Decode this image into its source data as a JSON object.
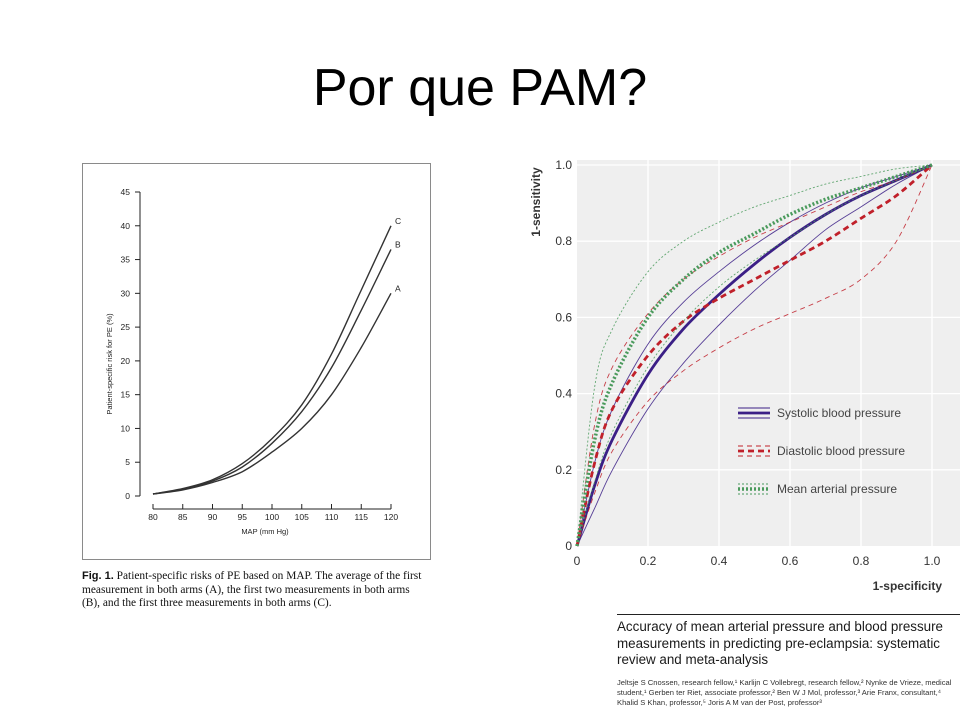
{
  "slide": {
    "title": "Por que PAM?"
  },
  "chart_data": [
    {
      "type": "line",
      "title": "",
      "xlabel": "MAP (mm Hg)",
      "ylabel": "Patient-specific risk for PE (%)",
      "xlim": [
        80,
        120
      ],
      "ylim": [
        0,
        45
      ],
      "xticks": [
        80,
        85,
        90,
        95,
        100,
        105,
        110,
        115,
        120
      ],
      "yticks": [
        0,
        5,
        10,
        15,
        20,
        25,
        30,
        35,
        40,
        45
      ],
      "grid": false,
      "x": [
        80,
        85,
        90,
        95,
        100,
        105,
        110,
        115,
        120
      ],
      "series": [
        {
          "name": "A",
          "values": [
            0.3,
            0.9,
            2.0,
            3.6,
            6.5,
            10.0,
            15.0,
            22.0,
            30.0
          ]
        },
        {
          "name": "B",
          "values": [
            0.3,
            1.0,
            2.2,
            4.3,
            7.8,
            12.5,
            19.0,
            27.5,
            36.5
          ]
        },
        {
          "name": "C",
          "values": [
            0.3,
            1.1,
            2.4,
            4.8,
            8.5,
            13.5,
            21.0,
            30.5,
            40.0
          ]
        }
      ],
      "caption": {
        "label": "Fig. 1.",
        "text": "Patient-specific risks of PE based on MAP. The average of the first measurement in both arms (A), the first two measurements in both arms (B), and the first three measurements in both arms (C)."
      }
    },
    {
      "type": "line",
      "title": "",
      "xlabel": "1-specificity",
      "ylabel": "1-sensitivity",
      "xlim": [
        0,
        1
      ],
      "ylim": [
        0,
        1
      ],
      "xticks": [
        "0",
        "0.2",
        "0.4",
        "0.6",
        "0.8",
        "1.0"
      ],
      "yticks": [
        "0",
        "0.2",
        "0.4",
        "0.6",
        "0.8",
        "1.0"
      ],
      "grid": true,
      "legend_position": "bottom-right",
      "x": [
        0,
        0.05,
        0.1,
        0.2,
        0.3,
        0.4,
        0.5,
        0.6,
        0.7,
        0.8,
        0.9,
        1.0
      ],
      "series": [
        {
          "name": "Systolic blood pressure",
          "style": "solid",
          "color": "#3b1f86",
          "values": [
            0,
            0.16,
            0.28,
            0.45,
            0.57,
            0.66,
            0.74,
            0.81,
            0.87,
            0.92,
            0.96,
            1.0
          ],
          "ci_upper": [
            0,
            0.22,
            0.36,
            0.53,
            0.64,
            0.72,
            0.79,
            0.85,
            0.9,
            0.94,
            0.97,
            1.0
          ],
          "ci_lower": [
            0,
            0.1,
            0.2,
            0.36,
            0.48,
            0.58,
            0.67,
            0.75,
            0.83,
            0.89,
            0.95,
            1.0
          ]
        },
        {
          "name": "Diastolic blood pressure",
          "style": "dashed",
          "color": "#c0202a",
          "values": [
            0,
            0.22,
            0.36,
            0.5,
            0.59,
            0.65,
            0.7,
            0.75,
            0.8,
            0.86,
            0.92,
            1.0
          ],
          "ci_upper": [
            0,
            0.32,
            0.47,
            0.61,
            0.7,
            0.76,
            0.81,
            0.85,
            0.89,
            0.93,
            0.96,
            1.0
          ],
          "ci_lower": [
            0,
            0.14,
            0.25,
            0.38,
            0.46,
            0.52,
            0.57,
            0.61,
            0.65,
            0.7,
            0.8,
            1.0
          ]
        },
        {
          "name": "Mean arterial pressure",
          "style": "dotted",
          "color": "#4a9a5c",
          "values": [
            0,
            0.28,
            0.43,
            0.6,
            0.7,
            0.77,
            0.82,
            0.87,
            0.91,
            0.94,
            0.97,
            1.0
          ],
          "ci_upper": [
            0,
            0.42,
            0.57,
            0.72,
            0.8,
            0.85,
            0.89,
            0.92,
            0.95,
            0.97,
            0.99,
            1.0
          ],
          "ci_lower": [
            0,
            0.17,
            0.3,
            0.47,
            0.59,
            0.68,
            0.75,
            0.81,
            0.87,
            0.92,
            0.96,
            1.0
          ]
        }
      ]
    }
  ],
  "reference": {
    "title": "Accuracy of mean arterial pressure and blood pressure measurements in predicting pre-eclampsia: systematic review and meta-analysis",
    "authors": "Jeltsje S Cnossen, research fellow,¹ Karlijn C Vollebregt, research fellow,² Nynke de Vrieze, medical student,¹ Gerben ter Riet, associate professor,² Ben W J Mol, professor,³ Arie Franx, consultant,⁴ Khalid S Khan, professor,⁵ Joris A M van der Post, professor³"
  }
}
